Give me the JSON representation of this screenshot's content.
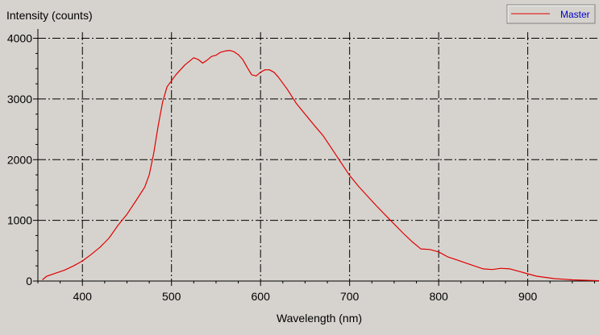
{
  "chart_data": {
    "type": "line",
    "title": "",
    "xlabel": "Wavelength (nm)",
    "ylabel": "Intensity (counts)",
    "xlim": [
      350,
      980
    ],
    "ylim": [
      0,
      4100
    ],
    "x_ticks": [
      400,
      500,
      600,
      700,
      800,
      900
    ],
    "y_ticks": [
      0,
      1000,
      2000,
      3000,
      4000
    ],
    "grid": true,
    "legend_position": "top-right",
    "series": [
      {
        "name": "Master",
        "color": "#e00000",
        "x": [
          355,
          360,
          370,
          380,
          390,
          400,
          410,
          420,
          430,
          440,
          450,
          460,
          470,
          475,
          480,
          485,
          490,
          495,
          500,
          505,
          510,
          515,
          520,
          525,
          530,
          535,
          540,
          545,
          550,
          555,
          560,
          565,
          570,
          575,
          580,
          585,
          590,
          595,
          600,
          605,
          610,
          615,
          620,
          625,
          630,
          640,
          650,
          660,
          670,
          680,
          690,
          700,
          710,
          720,
          730,
          740,
          750,
          760,
          770,
          780,
          790,
          800,
          810,
          820,
          830,
          840,
          850,
          860,
          870,
          880,
          890,
          900,
          910,
          920,
          930,
          940,
          950,
          960,
          970,
          980
        ],
        "y": [
          20,
          80,
          130,
          180,
          250,
          330,
          440,
          560,
          710,
          920,
          1100,
          1320,
          1550,
          1750,
          2100,
          2550,
          2950,
          3200,
          3300,
          3400,
          3480,
          3560,
          3620,
          3680,
          3650,
          3590,
          3640,
          3700,
          3720,
          3770,
          3790,
          3800,
          3780,
          3730,
          3650,
          3520,
          3400,
          3380,
          3440,
          3480,
          3480,
          3440,
          3360,
          3260,
          3160,
          2930,
          2750,
          2570,
          2400,
          2180,
          1960,
          1740,
          1560,
          1400,
          1240,
          1090,
          940,
          790,
          650,
          530,
          520,
          480,
          400,
          350,
          300,
          250,
          200,
          190,
          210,
          200,
          160,
          120,
          80,
          60,
          40,
          30,
          20,
          15,
          10,
          5
        ]
      }
    ]
  }
}
